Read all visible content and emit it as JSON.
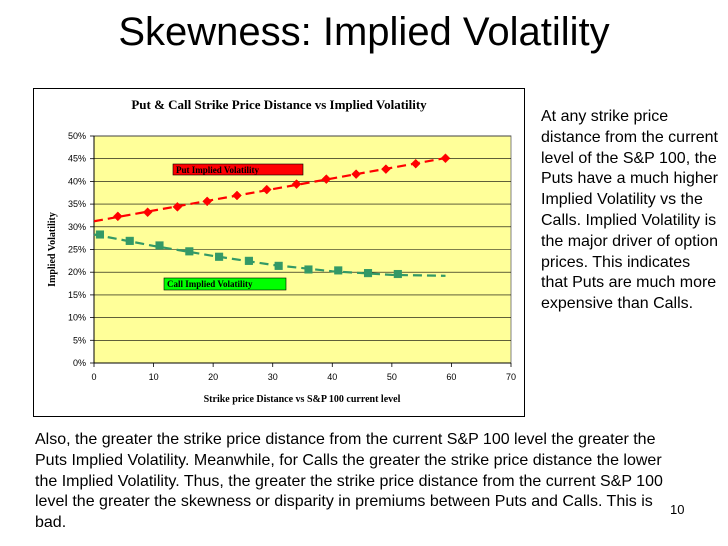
{
  "slide": {
    "title": "Skewness: Implied Volatility",
    "side_text": "At any strike price distance from the current level of the S&P 100, the Puts have a much higher Implied Volatility vs the Calls.  Implied Volatility is the major driver of option prices.  This indicates that Puts are much more expensive than Calls.",
    "bottom_text": "Also, the greater the strike price distance from the current S&P 100 level the greater the Puts Implied Volatility.  Meanwhile, for Calls the greater the strike price distance the lower the Implied Volatility.  Thus, the greater the strike price distance from the current S&P 100 level the greater the skewness or disparity in premiums between Puts and Calls.  This is bad.",
    "page_number": "10"
  },
  "chart_data": {
    "type": "line",
    "title": "Put & Call Strike Price Distance vs Implied Volatility",
    "xlabel": "Strike price Distance vs S&P 100 current level",
    "ylabel": "Implied Volatility",
    "xlim": [
      0,
      70
    ],
    "ylim": [
      0,
      50
    ],
    "x_ticks": [
      "0",
      "10",
      "20",
      "30",
      "40",
      "50",
      "60",
      "70"
    ],
    "y_ticks": [
      "0%",
      "5%",
      "10%",
      "15%",
      "20%",
      "25%",
      "30%",
      "35%",
      "40%",
      "45%",
      "50%"
    ],
    "grid": "horizontal",
    "plot_background": "#ffff99",
    "series": [
      {
        "name": "Put Implied Volatility",
        "color": "#ff0000",
        "marker": "diamond",
        "trendline": {
          "type": "linear",
          "color": "#ff0000",
          "dashed": true,
          "x_range": [
            0,
            59
          ]
        },
        "points": [
          {
            "x": 4,
            "y": 32.3
          },
          {
            "x": 9,
            "y": 33.2
          },
          {
            "x": 14,
            "y": 34.4
          },
          {
            "x": 19,
            "y": 35.6
          },
          {
            "x": 24,
            "y": 36.9
          },
          {
            "x": 29,
            "y": 38.2
          },
          {
            "x": 34,
            "y": 39.4
          },
          {
            "x": 39,
            "y": 40.5
          },
          {
            "x": 44,
            "y": 41.6
          },
          {
            "x": 49,
            "y": 42.7
          },
          {
            "x": 54,
            "y": 43.9
          },
          {
            "x": 59,
            "y": 45.1
          }
        ]
      },
      {
        "name": "Call Implied Volatility",
        "color": "#339966",
        "marker": "square",
        "trendline": {
          "type": "curve",
          "color": "#339966",
          "dashed": true,
          "x_range": [
            0,
            59
          ]
        },
        "points": [
          {
            "x": 1,
            "y": 28.3
          },
          {
            "x": 6,
            "y": 26.9
          },
          {
            "x": 11,
            "y": 25.9
          },
          {
            "x": 16,
            "y": 24.6
          },
          {
            "x": 21,
            "y": 23.4
          },
          {
            "x": 26,
            "y": 22.5
          },
          {
            "x": 31,
            "y": 21.4
          },
          {
            "x": 36,
            "y": 20.6
          },
          {
            "x": 41,
            "y": 20.4
          },
          {
            "x": 46,
            "y": 19.8
          },
          {
            "x": 51,
            "y": 19.6
          }
        ],
        "curve": [
          {
            "x": 0,
            "y": 28.3
          },
          {
            "x": 10,
            "y": 25.8
          },
          {
            "x": 20,
            "y": 23.6
          },
          {
            "x": 30,
            "y": 21.6
          },
          {
            "x": 40,
            "y": 20.2
          },
          {
            "x": 50,
            "y": 19.4
          },
          {
            "x": 59,
            "y": 19.2
          }
        ]
      }
    ],
    "legend_labels": [
      {
        "text": "Put Implied Volatility",
        "fill": "#ff0000"
      },
      {
        "text": "Call Implied Volatility",
        "fill": "#00ff00"
      }
    ]
  }
}
